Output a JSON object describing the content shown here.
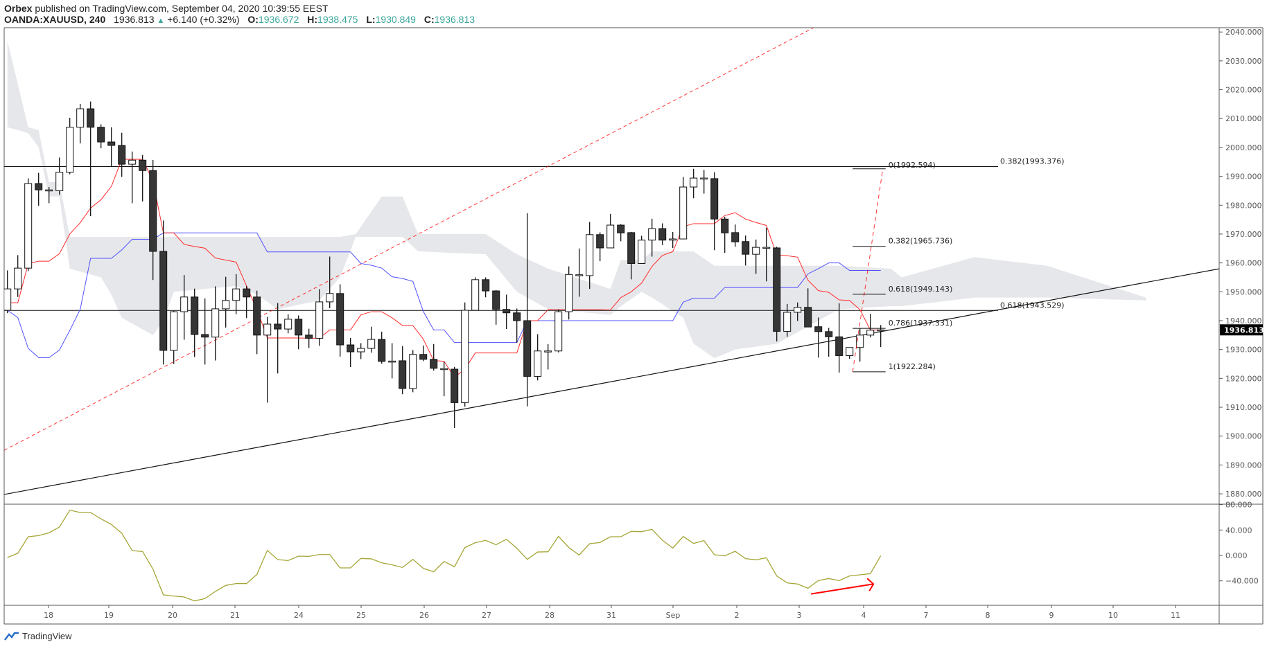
{
  "header": {
    "publisher": "Orbex",
    "published_text": "published on TradingView.com, September 04, 2020 10:39:55 EEST",
    "symbol": "OANDA:XAUUSD, 240",
    "last": "1936.813",
    "change": "+6.140 (+0.32%)",
    "open_label": "O:",
    "open": "1936.672",
    "high_label": "H:",
    "high": "1938.475",
    "low_label": "L:",
    "low": "1930.849",
    "close_label": "C:",
    "close": "1936.813"
  },
  "price_axis": {
    "ticks": [
      "2040.000",
      "2030.000",
      "2020.000",
      "2010.000",
      "2000.000",
      "1990.000",
      "1980.000",
      "1970.000",
      "1960.000",
      "1950.000",
      "1940.000",
      "1930.000",
      "1920.000",
      "1910.000",
      "1900.000",
      "1890.000",
      "1880.000"
    ],
    "last_price_label": "1936.813"
  },
  "osc_axis": {
    "ticks": [
      "80.000",
      "40.000",
      "0.000",
      "−40.000"
    ]
  },
  "time_axis": {
    "labels": [
      "18",
      "19",
      "20",
      "21",
      "24",
      "25",
      "26",
      "27",
      "28",
      "31",
      "Sep",
      "2",
      "3",
      "4",
      "7",
      "8",
      "9",
      "10",
      "11"
    ]
  },
  "footer": {
    "logo_text": "TradingView"
  },
  "colors": {
    "up_body": "#ffffff",
    "down_body": "#363636",
    "tenkan": "#ff2a2a",
    "kijun": "#5050ff",
    "cloud": "#e6e7ea",
    "oscillator": "#a5a536",
    "accent": "#3aa69a",
    "annotation": "#ff0000"
  },
  "chart_data": {
    "type": "candlestick",
    "timeframe": "240",
    "candles_ohlc": [
      [
        1943.6,
        1957.4,
        1942.6,
        1951.0
      ],
      [
        1951.0,
        1962.7,
        1948.2,
        1958.2
      ],
      [
        1958.2,
        1989.3,
        1957.2,
        1987.5
      ],
      [
        1987.5,
        1991.2,
        1979.8,
        1985.3
      ],
      [
        1985.3,
        1986.3,
        1980.7,
        1985.3
      ],
      [
        1985.0,
        1996.5,
        1983.6,
        1991.4
      ],
      [
        1991.4,
        2010.3,
        1990.7,
        2007.0
      ],
      [
        2007.0,
        2015.1,
        2001.4,
        2013.4
      ],
      [
        2013.4,
        2015.9,
        1976.2,
        2007.0
      ],
      [
        2007.0,
        2008.0,
        1999.7,
        2001.9
      ],
      [
        2001.9,
        2007.0,
        1993.5,
        2000.7
      ],
      [
        2000.7,
        2005.1,
        1989.8,
        1994.2
      ],
      [
        1994.2,
        1998.6,
        1980.7,
        1995.6
      ],
      [
        1995.6,
        1997.4,
        1981.3,
        1992.0
      ],
      [
        1992.0,
        1995.7,
        1954.1,
        1964.0
      ],
      [
        1964.0,
        1974.7,
        1924.8,
        1929.7
      ],
      [
        1929.7,
        1943.4,
        1925.0,
        1943.1
      ],
      [
        1943.1,
        1955.8,
        1933.4,
        1948.2
      ],
      [
        1948.2,
        1951.1,
        1927.4,
        1935.2
      ],
      [
        1935.2,
        1947.7,
        1924.8,
        1934.3
      ],
      [
        1934.3,
        1951.9,
        1926.2,
        1944.1
      ],
      [
        1944.1,
        1955.2,
        1937.6,
        1947.0
      ],
      [
        1947.0,
        1956.1,
        1942.2,
        1951.0
      ],
      [
        1951.0,
        1952.0,
        1940.9,
        1948.2
      ],
      [
        1948.2,
        1950.4,
        1928.4,
        1935.0
      ],
      [
        1935.0,
        1941.3,
        1911.6,
        1938.8
      ],
      [
        1938.8,
        1946.1,
        1921.7,
        1937.1
      ],
      [
        1937.1,
        1942.2,
        1935.6,
        1940.5
      ],
      [
        1940.5,
        1941.8,
        1930.1,
        1935.0
      ],
      [
        1935.0,
        1937.2,
        1930.5,
        1933.9
      ],
      [
        1933.9,
        1950.9,
        1931.3,
        1946.5
      ],
      [
        1946.5,
        1962.2,
        1944.3,
        1949.4
      ],
      [
        1949.4,
        1952.6,
        1927.5,
        1931.6
      ],
      [
        1931.6,
        1934.0,
        1923.9,
        1929.2
      ],
      [
        1929.2,
        1932.2,
        1926.7,
        1930.4
      ],
      [
        1930.4,
        1937.9,
        1928.9,
        1933.5
      ],
      [
        1933.5,
        1936.2,
        1925.1,
        1925.9
      ],
      [
        1926.0,
        1932.2,
        1920.0,
        1926.0
      ],
      [
        1926.1,
        1931.2,
        1914.5,
        1916.5
      ],
      [
        1916.5,
        1929.8,
        1915.2,
        1928.3
      ],
      [
        1928.3,
        1931.4,
        1926.0,
        1926.6
      ],
      [
        1926.6,
        1931.9,
        1922.7,
        1923.5
      ],
      [
        1923.4,
        1925.8,
        1913.8,
        1923.4
      ],
      [
        1923.2,
        1924.0,
        1902.8,
        1911.6
      ],
      [
        1911.6,
        1946.3,
        1910.2,
        1943.6
      ],
      [
        1943.6,
        1955.0,
        1943.6,
        1954.2
      ],
      [
        1954.2,
        1955.0,
        1948.1,
        1950.3
      ],
      [
        1950.3,
        1950.6,
        1938.6,
        1943.9
      ],
      [
        1943.9,
        1949.0,
        1937.1,
        1942.7
      ],
      [
        1942.7,
        1944.2,
        1932.4,
        1940.0
      ],
      [
        1940.0,
        1977.2,
        1910.3,
        1920.7
      ],
      [
        1920.7,
        1935.3,
        1919.3,
        1929.5
      ],
      [
        1929.5,
        1931.9,
        1923.1,
        1929.5
      ],
      [
        1929.5,
        1943.9,
        1929.0,
        1943.1
      ],
      [
        1943.1,
        1958.8,
        1940.4,
        1956.0
      ],
      [
        1955.9,
        1965.0,
        1948.3,
        1955.9
      ],
      [
        1955.6,
        1974.2,
        1951.0,
        1969.8
      ],
      [
        1969.8,
        1970.6,
        1960.6,
        1965.2
      ],
      [
        1965.2,
        1977.0,
        1965.2,
        1973.1
      ],
      [
        1973.1,
        1973.4,
        1967.5,
        1970.4
      ],
      [
        1970.5,
        1970.7,
        1954.3,
        1959.8
      ],
      [
        1959.8,
        1969.4,
        1959.8,
        1967.9
      ],
      [
        1967.9,
        1975.3,
        1962.2,
        1971.9
      ],
      [
        1971.9,
        1973.7,
        1966.2,
        1967.9
      ],
      [
        1967.9,
        1970.7,
        1965.2,
        1968.3
      ],
      [
        1968.3,
        1989.8,
        1968.3,
        1986.3
      ],
      [
        1986.3,
        1992.6,
        1982.4,
        1989.4
      ],
      [
        1989.4,
        1992.2,
        1984.0,
        1989.4
      ],
      [
        1989.2,
        1991.4,
        1964.4,
        1975.2
      ],
      [
        1975.2,
        1976.0,
        1963.5,
        1970.4
      ],
      [
        1970.5,
        1973.3,
        1965.6,
        1967.3
      ],
      [
        1967.4,
        1969.5,
        1959.1,
        1963.0
      ],
      [
        1963.0,
        1968.1,
        1956.2,
        1965.4
      ],
      [
        1965.4,
        1972.2,
        1953.6,
        1965.4
      ],
      [
        1965.2,
        1965.6,
        1932.8,
        1936.3
      ],
      [
        1936.3,
        1945.8,
        1934.4,
        1942.9
      ],
      [
        1942.9,
        1946.3,
        1939.9,
        1944.6
      ],
      [
        1944.6,
        1951.2,
        1937.8,
        1937.8
      ],
      [
        1937.9,
        1941.1,
        1927.2,
        1936.2
      ],
      [
        1936.2,
        1937.5,
        1927.5,
        1934.4
      ],
      [
        1934.4,
        1946.0,
        1922.0,
        1927.9
      ],
      [
        1927.9,
        1930.7,
        1926.8,
        1930.7
      ],
      [
        1930.7,
        1937.4,
        1925.8,
        1935.0
      ],
      [
        1935.0,
        1942.4,
        1934.2,
        1936.7
      ],
      [
        1936.672,
        1938.475,
        1930.849,
        1936.813
      ]
    ],
    "tenkan": [
      1946.2,
      1946.2,
      1959.7,
      1960.6,
      1960.6,
      1963.2,
      1970.0,
      1973.9,
      1979.0,
      1981.9,
      1986.5,
      1995.9,
      1995.9,
      1995.9,
      1988.4,
      1970.4,
      1970.4,
      1966.4,
      1965.7,
      1965.1,
      1961.7,
      1961.0,
      1960.3,
      1952.0,
      1943.9,
      1934.0,
      1934.0,
      1934.0,
      1934.0,
      1933.9,
      1933.9,
      1936.8,
      1936.8,
      1936.8,
      1942.0,
      1943.1,
      1943.1,
      1941.0,
      1938.3,
      1938.3,
      1933.6,
      1926.2,
      1925.9,
      1920.4,
      1923.2,
      1928.8,
      1928.8,
      1928.8,
      1928.8,
      1928.8,
      1940.0,
      1940.0,
      1943.8,
      1943.8,
      1943.8,
      1943.8,
      1943.8,
      1943.8,
      1943.7,
      1948.0,
      1950.0,
      1953.0,
      1958.8,
      1962.6,
      1963.9,
      1972.6,
      1973.6,
      1973.6,
      1973.6,
      1976.4,
      1977.4,
      1975.2,
      1974.0,
      1973.0,
      1962.7,
      1962.5,
      1962.0,
      1954.0,
      1950.4,
      1949.8,
      1947.2,
      1947.0,
      1943.8,
      1936.8,
      1936.8
    ],
    "kijun": [
      1943.6,
      1941.1,
      1930.4,
      1927.2,
      1927.2,
      1929.8,
      1936.6,
      1943.9,
      1961.6,
      1961.6,
      1961.6,
      1964.5,
      1968.2,
      1968.2,
      1968.2,
      1970.4,
      1970.4,
      1970.4,
      1970.4,
      1970.4,
      1970.4,
      1970.4,
      1970.4,
      1970.4,
      1970.4,
      1963.8,
      1963.8,
      1963.8,
      1963.8,
      1963.8,
      1963.8,
      1963.8,
      1963.8,
      1963.8,
      1959.8,
      1959.2,
      1958.2,
      1955.2,
      1954.6,
      1953.6,
      1943.2,
      1936.8,
      1936.8,
      1932.4,
      1932.4,
      1932.4,
      1932.4,
      1932.4,
      1932.4,
      1932.4,
      1940.0,
      1940.0,
      1940.0,
      1940.0,
      1940.0,
      1940.0,
      1940.0,
      1940.0,
      1940.0,
      1940.0,
      1940.0,
      1940.0,
      1940.0,
      1940.0,
      1940.0,
      1946.4,
      1947.8,
      1947.8,
      1947.8,
      1951.5,
      1951.5,
      1951.5,
      1951.5,
      1951.5,
      1951.5,
      1951.5,
      1951.5,
      1956.2,
      1958.0,
      1960.0,
      1960.0,
      1957.4,
      1957.4,
      1957.4,
      1957.4
    ],
    "cloud_bar_upper_lower": [
      [
        1,
        2037,
        2007
      ],
      [
        3,
        2007,
        2005
      ],
      [
        4,
        2006,
        2000
      ],
      [
        5,
        1988,
        1983
      ],
      [
        6,
        1988,
        1983
      ],
      [
        7,
        1969,
        1958
      ],
      [
        10,
        1969,
        1955
      ],
      [
        11,
        1969,
        1949
      ],
      [
        12,
        1969,
        1941
      ],
      [
        15,
        1969,
        1935
      ],
      [
        16,
        1969,
        1940
      ],
      [
        17,
        1969,
        1950
      ],
      [
        23,
        1969,
        1952
      ],
      [
        25,
        1969,
        1949
      ],
      [
        27,
        1969,
        1944
      ],
      [
        31,
        1969,
        1947
      ],
      [
        33,
        1969,
        1955
      ],
      [
        34.5,
        1970,
        1969
      ],
      [
        37,
        1983,
        1969
      ],
      [
        39,
        1983,
        1969
      ],
      [
        40.5,
        1970,
        1964
      ],
      [
        47,
        1970,
        1963
      ],
      [
        50,
        1963,
        1950
      ],
      [
        53,
        1958,
        1944
      ],
      [
        59,
        1951,
        1942
      ],
      [
        60,
        1961,
        1945
      ],
      [
        62,
        1961,
        1950
      ],
      [
        63,
        1964,
        1948
      ],
      [
        66,
        1964,
        1941
      ],
      [
        67,
        1964,
        1932
      ],
      [
        69,
        1959,
        1927
      ],
      [
        71,
        1959,
        1930
      ],
      [
        75,
        1959,
        1932
      ],
      [
        81,
        1959,
        1944
      ],
      [
        86,
        1958,
        1945
      ],
      [
        87,
        1955,
        1945
      ],
      [
        94,
        1962,
        1948
      ],
      [
        101,
        1959,
        1948
      ],
      [
        110.5,
        1948,
        1947
      ]
    ],
    "oscillator": [
      -3.3,
      3.3,
      29.4,
      31.2,
      35.6,
      44.7,
      71.2,
      67.6,
      67.6,
      57.5,
      48.7,
      34.9,
      7.6,
      6.2,
      -21.4,
      -62.1,
      -63.9,
      -65.4,
      -71.6,
      -67.9,
      -56.7,
      -47.2,
      -44.3,
      -44.3,
      -29.8,
      8.0,
      -6.5,
      -8.0,
      -1.1,
      -1.5,
      1.4,
      1.4,
      -19.6,
      -19.6,
      -4.7,
      -5.4,
      -11.6,
      -14.9,
      -18.9,
      -6.2,
      -20.3,
      -25.7,
      -9.4,
      -17.8,
      12.4,
      20.0,
      23.7,
      16.8,
      25.5,
      11.3,
      -6.2,
      5.4,
      5.8,
      30.1,
      12.4,
      0.7,
      18.5,
      20.3,
      29.4,
      29.4,
      37.8,
      37.4,
      41.0,
      23.9,
      11.6,
      29.8,
      18.9,
      23.3,
      1.1,
      -0.7,
      6.5,
      -5.1,
      -6.9,
      -3.6,
      -32.3,
      -43.2,
      -45.0,
      -51.6,
      -39.6,
      -36.3,
      -39.6,
      -32.3,
      -30.5,
      -28.7,
      -0.4
    ],
    "price_range": [
      1880,
      2040
    ],
    "oscillator_range": [
      -40,
      80
    ],
    "drawings": {
      "horizontal_lines": [
        {
          "price": 1993.376,
          "label": "0.382(1993.376)"
        },
        {
          "price": 1943.529,
          "label": "0.618(1943.529)"
        }
      ],
      "trendline": {
        "from_bar": 0.69,
        "from_price": 1879.8,
        "to_bar": 117.6,
        "to_price": 1958.0
      },
      "dashed_trendline": {
        "from_bar": 0.69,
        "from_price": 1895.1,
        "to_bar": 78.6,
        "to_price": 2041.6
      },
      "fib_retracement": {
        "from_bar": 82.3,
        "to_bar": 85.2,
        "from_price": 1922.284,
        "to_price": 1992.594,
        "levels": [
          {
            "price": 1992.594,
            "label": "0(1992.594)"
          },
          {
            "price": 1965.736,
            "label": "0.382(1965.736)"
          },
          {
            "price": 1949.143,
            "label": "0.618(1949.143)"
          },
          {
            "price": 1937.331,
            "label": "0.786(1937.331)"
          },
          {
            "price": 1922.284,
            "label": "1(1922.284)"
          }
        ]
      },
      "oscillator_arrow": {
        "from_bar": 78.3,
        "from_value": -60.6,
        "to_bar": 84.3,
        "to_value": -45.0
      }
    }
  }
}
